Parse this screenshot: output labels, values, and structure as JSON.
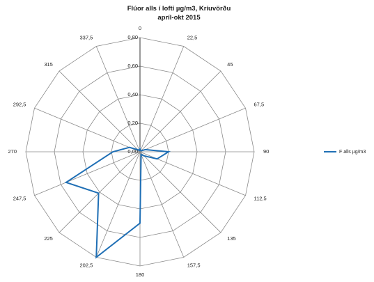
{
  "chart_data": {
    "type": "radar",
    "title": [
      "Flúor alls í lofti µg/m3, Kríuvörðu",
      "apríl-okt 2015"
    ],
    "categories": [
      "0",
      "22,5",
      "45",
      "67,5",
      "90",
      "112,5",
      "135",
      "157,5",
      "180",
      "202,5",
      "225",
      "247,5",
      "270",
      "292,5",
      "315",
      "337,5"
    ],
    "rlim": [
      0,
      0.8
    ],
    "ticks": [
      0,
      0.2,
      0.4,
      0.6,
      0.8
    ],
    "tick_labels": [
      "0,00",
      "0,20",
      "0,40",
      "0,60",
      "0,80"
    ],
    "series": [
      {
        "name": "F alls µg/m3",
        "values": [
          0.02,
          0.01,
          0.01,
          0.04,
          0.2,
          0.13,
          0.04,
          0.02,
          0.5,
          0.8,
          0.41,
          0.56,
          0.19,
          0.08,
          0.02,
          0.01
        ],
        "color": "#1f6fb5"
      }
    ],
    "grid": true,
    "legend": "right"
  }
}
